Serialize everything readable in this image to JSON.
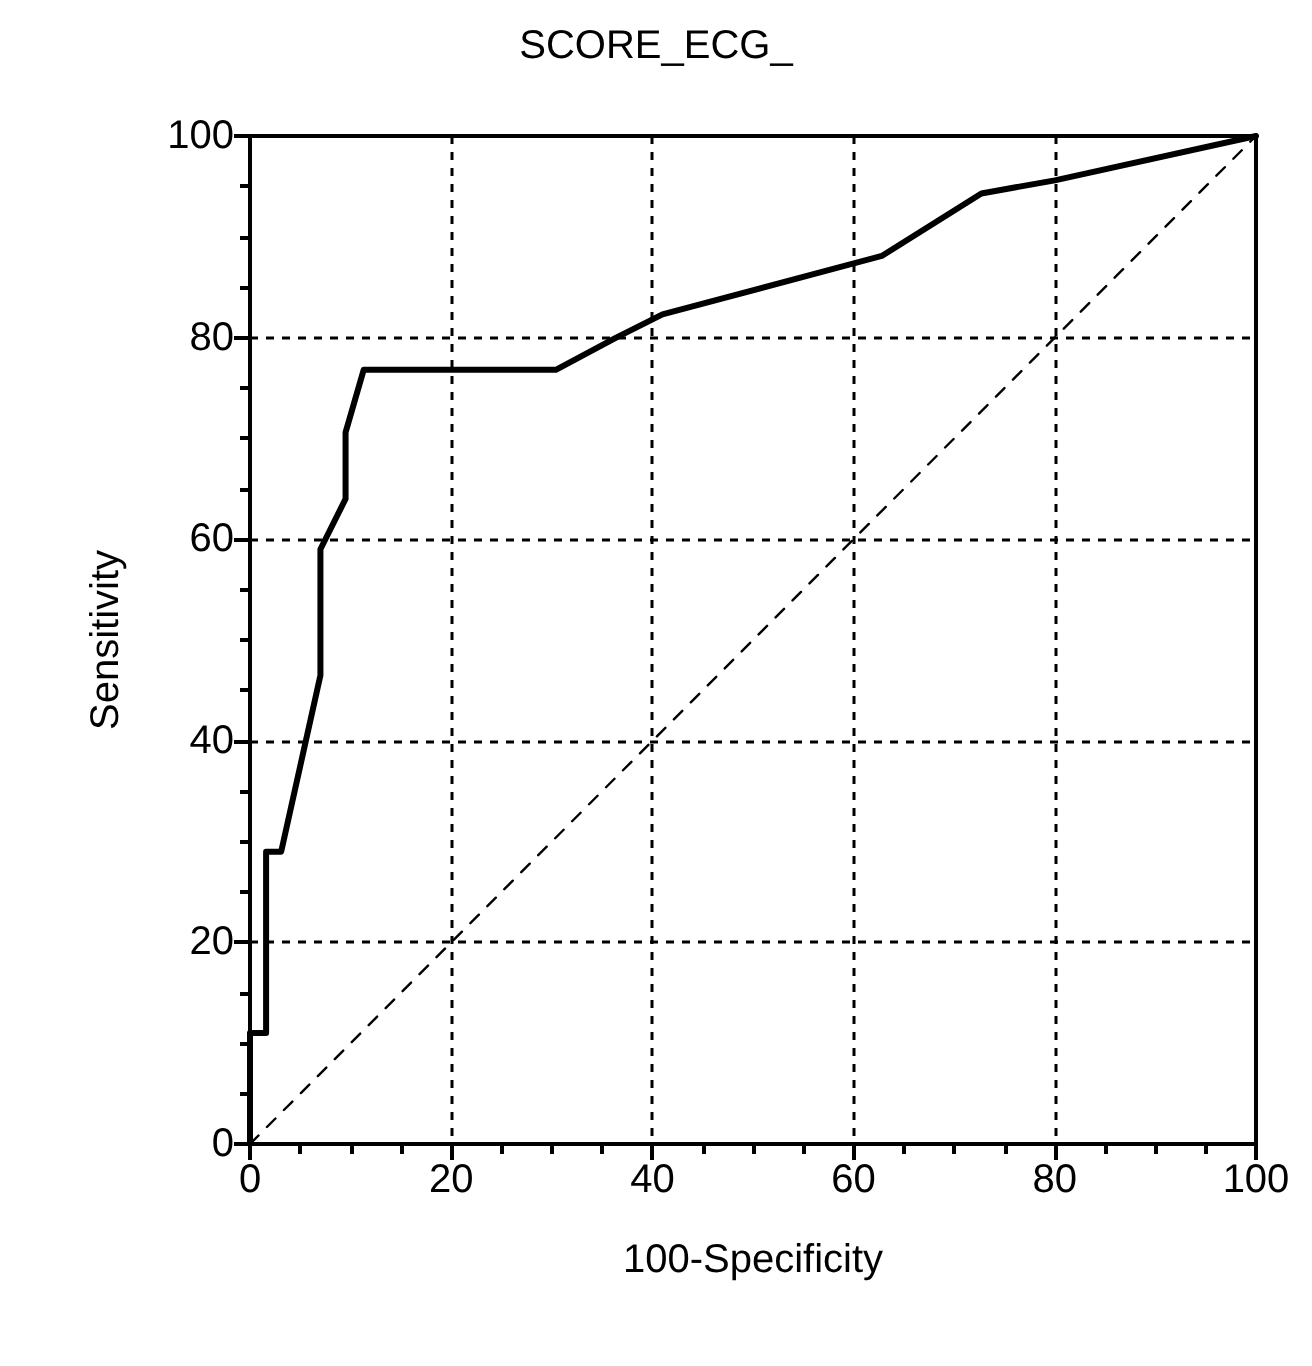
{
  "chart_data": {
    "type": "line",
    "title": "SCORE_ECG_",
    "xlabel": "100-Specificity",
    "ylabel": "Sensitivity",
    "xlim": [
      0,
      100
    ],
    "ylim": [
      0,
      100
    ],
    "xticks": [
      0,
      20,
      40,
      60,
      80,
      100
    ],
    "yticks": [
      0,
      20,
      40,
      60,
      80,
      100
    ],
    "grid": true,
    "marker": "none",
    "series": [
      {
        "color": "#000000",
        "line_style": "solid",
        "x": [
          0,
          0,
          1.6,
          1.6,
          3.1,
          7.0,
          7.0,
          9.5,
          9.5,
          11.3,
          30.4,
          36.4,
          41,
          62.8,
          72.7,
          80,
          100
        ],
        "values": [
          0,
          11,
          11,
          29,
          29,
          46.5,
          59,
          64,
          70.6,
          76.8,
          76.8,
          80,
          82.3,
          88.1,
          94.3,
          95.6,
          100
        ]
      },
      {
        "color": "#000000",
        "line_style": "dashed",
        "x": [
          0,
          100
        ],
        "values": [
          0,
          100
        ]
      }
    ]
  }
}
